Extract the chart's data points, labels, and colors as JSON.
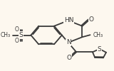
{
  "bg_color": "#fdf8ef",
  "bond_color": "#3a3a3a",
  "bond_width": 1.3,
  "font_color": "#3a3a3a",
  "font_size_atom": 6.5,
  "font_size_small": 5.5,
  "xlim": [
    0.0,
    1.0
  ],
  "ylim": [
    0.0,
    1.0
  ]
}
